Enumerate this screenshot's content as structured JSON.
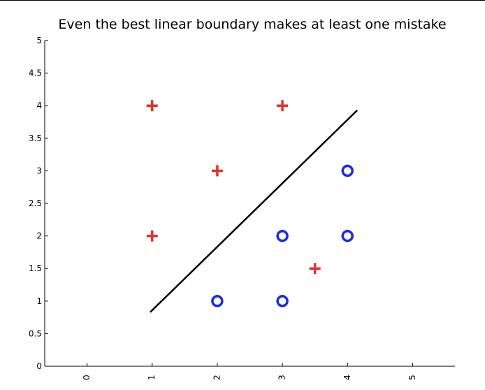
{
  "chart_data": {
    "type": "scatter",
    "title": "Even the best linear boundary makes at least one mistake",
    "xlabel": "",
    "ylabel": "",
    "xlim": [
      -0.65,
      5.65
    ],
    "ylim": [
      0,
      5
    ],
    "xticks": [
      "0",
      "1",
      "2",
      "3",
      "4",
      "5"
    ],
    "yticks": [
      "0",
      "0.5",
      "1",
      "1.5",
      "2",
      "2.5",
      "3",
      "3.5",
      "4",
      "4.5",
      "5"
    ],
    "grid": false,
    "series": [
      {
        "marker": "plus",
        "color": "#e8322a",
        "points": [
          [
            1,
            4
          ],
          [
            3,
            4
          ],
          [
            2,
            3
          ],
          [
            1,
            2
          ],
          [
            3.5,
            1.5
          ]
        ]
      },
      {
        "marker": "circle",
        "color": "#1a2fe0",
        "points": [
          [
            4,
            3
          ],
          [
            3,
            2
          ],
          [
            4,
            2
          ],
          [
            2,
            1
          ],
          [
            3,
            1
          ]
        ]
      }
    ],
    "lines": [
      {
        "color": "#000000",
        "points": [
          [
            0.97,
            0.83
          ],
          [
            4.15,
            3.93
          ]
        ]
      }
    ]
  }
}
